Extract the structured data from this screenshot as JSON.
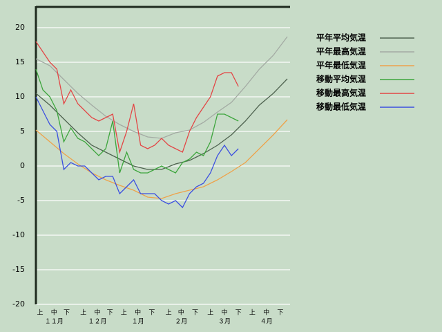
{
  "chart_data": {
    "type": "line",
    "xlim": [
      0,
      182
    ],
    "ylim": [
      -20,
      23
    ],
    "yticks": [
      20,
      15,
      10,
      5,
      0,
      -5,
      -10,
      -15,
      -20
    ],
    "grid": true,
    "xticks": [
      {
        "value": 3,
        "label": "上"
      },
      {
        "value": 13,
        "label": "中"
      },
      {
        "value": 22,
        "label": "下"
      },
      {
        "value": 34,
        "label": "上"
      },
      {
        "value": 44,
        "label": "中"
      },
      {
        "value": 53,
        "label": "下"
      },
      {
        "value": 63,
        "label": "上"
      },
      {
        "value": 73,
        "label": "中"
      },
      {
        "value": 83,
        "label": "下"
      },
      {
        "value": 95,
        "label": "上"
      },
      {
        "value": 104,
        "label": "中"
      },
      {
        "value": 114,
        "label": "下"
      },
      {
        "value": 125,
        "label": "上"
      },
      {
        "value": 135,
        "label": "中"
      },
      {
        "value": 145,
        "label": "下"
      },
      {
        "value": 155,
        "label": "上"
      },
      {
        "value": 165,
        "label": "中"
      },
      {
        "value": 175,
        "label": "下"
      }
    ],
    "month_ticks": [
      {
        "value": 13,
        "label": "１１月"
      },
      {
        "value": 44,
        "label": "１２月"
      },
      {
        "value": 73,
        "label": "１月"
      },
      {
        "value": 104,
        "label": "２月"
      },
      {
        "value": 135,
        "label": "３月"
      },
      {
        "value": 165,
        "label": "４月"
      }
    ],
    "legend": "right",
    "series": [
      {
        "name": "平年平均気温",
        "color": "#4f6350",
        "x": [
          0,
          10,
          20,
          30,
          40,
          50,
          60,
          70,
          80,
          90,
          100,
          110,
          120,
          130,
          140,
          150,
          160,
          170,
          180
        ],
        "values": [
          10.5,
          8.8,
          6.8,
          4.8,
          3,
          2,
          1,
          0,
          -0.5,
          -0.5,
          0.3,
          0.8,
          1.8,
          3,
          4.5,
          6.5,
          8.8,
          10.5,
          12.6
        ]
      },
      {
        "name": "平年最高気温",
        "color": "#a3aaa3",
        "x": [
          0,
          10,
          20,
          30,
          40,
          50,
          60,
          70,
          80,
          90,
          100,
          110,
          120,
          130,
          140,
          150,
          160,
          170,
          180
        ],
        "values": [
          15.5,
          14.5,
          12.5,
          10.5,
          8.8,
          7.2,
          6,
          5,
          4.2,
          4,
          4.8,
          5.2,
          6.3,
          7.8,
          9.2,
          11.5,
          14,
          16,
          18.7
        ]
      },
      {
        "name": "平年最低気温",
        "color": "#eea24a",
        "x": [
          0,
          10,
          20,
          30,
          40,
          50,
          60,
          70,
          80,
          90,
          100,
          110,
          120,
          130,
          140,
          150,
          160,
          170,
          180
        ],
        "values": [
          5.2,
          3.5,
          1.8,
          0.3,
          -1,
          -2,
          -2.8,
          -3.5,
          -4.5,
          -4.7,
          -4,
          -3.5,
          -3,
          -2,
          -0.8,
          0.5,
          2.5,
          4.5,
          6.7
        ]
      },
      {
        "name": "移動平均気温",
        "color": "#3da53d",
        "x": [
          0,
          5,
          10,
          15,
          20,
          25,
          30,
          35,
          40,
          45,
          50,
          55,
          60,
          65,
          70,
          75,
          80,
          85,
          90,
          95,
          100,
          105,
          110,
          115,
          120,
          125,
          130,
          135,
          140,
          145
        ],
        "values": [
          14,
          11,
          10,
          8,
          3.5,
          5.5,
          4,
          3.5,
          2.5,
          1.5,
          2.5,
          6.5,
          -1,
          2,
          -0.5,
          -1,
          -1,
          -0.5,
          0,
          -0.5,
          -1,
          0.5,
          1,
          2,
          1.5,
          3.5,
          7.5,
          7.5,
          7,
          6.5
        ]
      },
      {
        "name": "移動最高気温",
        "color": "#e34646",
        "x": [
          0,
          5,
          10,
          15,
          20,
          25,
          30,
          35,
          40,
          45,
          50,
          55,
          60,
          65,
          70,
          75,
          80,
          85,
          90,
          95,
          100,
          105,
          110,
          115,
          120,
          125,
          130,
          135,
          140,
          145
        ],
        "values": [
          18,
          16.5,
          15,
          14,
          9,
          11,
          9,
          8,
          7,
          6.5,
          7,
          7.5,
          2,
          5,
          9,
          3,
          2.5,
          3,
          4,
          3,
          2.5,
          2,
          5,
          7,
          8.5,
          10,
          13,
          13.5,
          13.5,
          11.5
        ]
      },
      {
        "name": "移動最低気温",
        "color": "#3b4fe0",
        "x": [
          0,
          5,
          10,
          15,
          20,
          25,
          30,
          35,
          40,
          45,
          50,
          55,
          60,
          65,
          70,
          75,
          80,
          85,
          90,
          95,
          100,
          105,
          110,
          115,
          120,
          125,
          130,
          135,
          140,
          145
        ],
        "values": [
          10,
          8,
          6,
          5,
          -0.5,
          0.5,
          0,
          0,
          -1,
          -2,
          -1.5,
          -1.5,
          -4,
          -3,
          -2,
          -4,
          -4,
          -4,
          -5,
          -5.5,
          -5,
          -6,
          -4,
          -3,
          -2.5,
          -1,
          1.5,
          3,
          1.5,
          2.5
        ]
      }
    ]
  }
}
